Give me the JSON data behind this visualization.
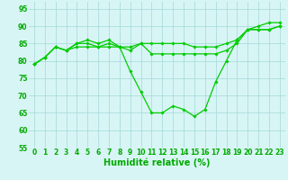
{
  "x": [
    0,
    1,
    2,
    3,
    4,
    5,
    6,
    7,
    8,
    9,
    10,
    11,
    12,
    13,
    14,
    15,
    16,
    17,
    18,
    19,
    20,
    21,
    22,
    23
  ],
  "lines": [
    [
      79,
      81,
      84,
      83,
      85,
      86,
      85,
      86,
      84,
      77,
      71,
      65,
      65,
      67,
      66,
      64,
      66,
      74,
      80,
      86,
      89,
      90,
      91,
      91
    ],
    [
      79,
      81,
      84,
      83,
      85,
      85,
      84,
      85,
      84,
      84,
      85,
      85,
      85,
      85,
      85,
      84,
      84,
      84,
      85,
      86,
      89,
      89,
      89,
      90
    ],
    [
      79,
      81,
      84,
      83,
      84,
      84,
      84,
      84,
      84,
      83,
      85,
      82,
      82,
      82,
      82,
      82,
      82,
      82,
      83,
      85,
      89,
      89,
      89,
      90
    ]
  ],
  "line_color": "#00cc00",
  "marker": "D",
  "marker_size": 1.8,
  "background_color": "#d8f5f5",
  "grid_color": "#aadddd",
  "line_width": 0.9,
  "xlabel": "Humidité relative (%)",
  "xlabel_color": "#00aa00",
  "xlabel_fontsize": 7,
  "tick_color": "#00aa00",
  "tick_fontsize": 5.5,
  "ylim": [
    55,
    97
  ],
  "xlim": [
    -0.5,
    23.5
  ],
  "yticks": [
    55,
    60,
    65,
    70,
    75,
    80,
    85,
    90,
    95
  ],
  "xticks": [
    0,
    1,
    2,
    3,
    4,
    5,
    6,
    7,
    8,
    9,
    10,
    11,
    12,
    13,
    14,
    15,
    16,
    17,
    18,
    19,
    20,
    21,
    22,
    23
  ]
}
